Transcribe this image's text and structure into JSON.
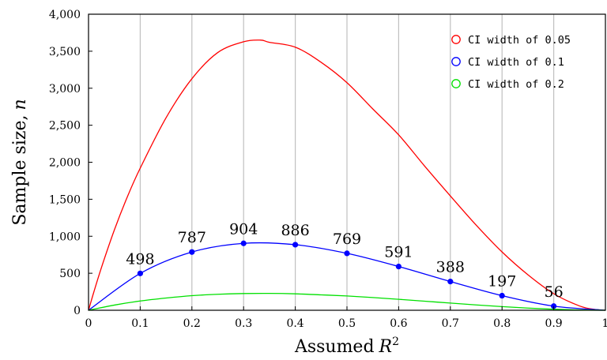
{
  "chart_data": {
    "type": "line",
    "xlabel": "Assumed",
    "xlabel_math": "R",
    "xlabel_sup": "2",
    "ylabel": "Sample size,",
    "ylabel_math": "n",
    "xlim": [
      0,
      1
    ],
    "ylim": [
      0,
      4000
    ],
    "x_ticks": [
      0,
      0.1,
      0.2,
      0.3,
      0.4,
      0.5,
      0.6,
      0.7,
      0.8,
      0.9,
      1
    ],
    "x_tick_labels": [
      "0",
      "0.1",
      "0.2",
      "0.3",
      "0.4",
      "0.5",
      "0.6",
      "0.7",
      "0.8",
      "0.9",
      "1"
    ],
    "y_ticks": [
      0,
      500,
      1000,
      1500,
      2000,
      2500,
      3000,
      3500,
      4000
    ],
    "y_tick_labels": [
      "0",
      "500",
      "1,000",
      "1,500",
      "2,000",
      "2,500",
      "3,000",
      "3,500",
      "4,000"
    ],
    "grid": "vertical",
    "legend_position": "top-right",
    "series": [
      {
        "name": "CI width of 0.05",
        "color": "#ff0000",
        "x": [
          0,
          0.01,
          0.025,
          0.05,
          0.075,
          0.1,
          0.15,
          0.2,
          0.25,
          0.3,
          0.333,
          0.35,
          0.4,
          0.45,
          0.5,
          0.55,
          0.6,
          0.65,
          0.7,
          0.75,
          0.8,
          0.85,
          0.9,
          0.95,
          0.98,
          1
        ],
        "y": [
          0,
          240,
          577,
          1085,
          1531,
          1920,
          2601,
          3129,
          3482,
          3628,
          3650,
          3620,
          3555,
          3350,
          3075,
          2720,
          2370,
          1950,
          1545,
          1150,
          788,
          480,
          224,
          58,
          10,
          0
        ]
      },
      {
        "name": "CI width of 0.1",
        "color": "#0000ff",
        "markers": true,
        "show_labels": true,
        "x": [
          0,
          0.1,
          0.2,
          0.3,
          0.4,
          0.5,
          0.6,
          0.7,
          0.8,
          0.9,
          1
        ],
        "y": [
          0,
          498,
          787,
          904,
          886,
          769,
          591,
          388,
          197,
          56,
          0
        ],
        "labels": [
          "498",
          "787",
          "904",
          "886",
          "769",
          "591",
          "388",
          "197",
          "56"
        ]
      },
      {
        "name": "CI width of 0.2",
        "color": "#00e000",
        "x": [
          0,
          0.05,
          0.1,
          0.15,
          0.2,
          0.25,
          0.3,
          0.35,
          0.4,
          0.45,
          0.5,
          0.55,
          0.6,
          0.65,
          0.7,
          0.75,
          0.8,
          0.85,
          0.9,
          0.95,
          1
        ],
        "y": [
          0,
          70,
          125,
          165,
          197,
          216,
          226,
          228,
          222,
          208,
          193,
          172,
          148,
          123,
          97,
          72,
          49,
          29,
          14,
          4,
          0
        ]
      }
    ]
  }
}
